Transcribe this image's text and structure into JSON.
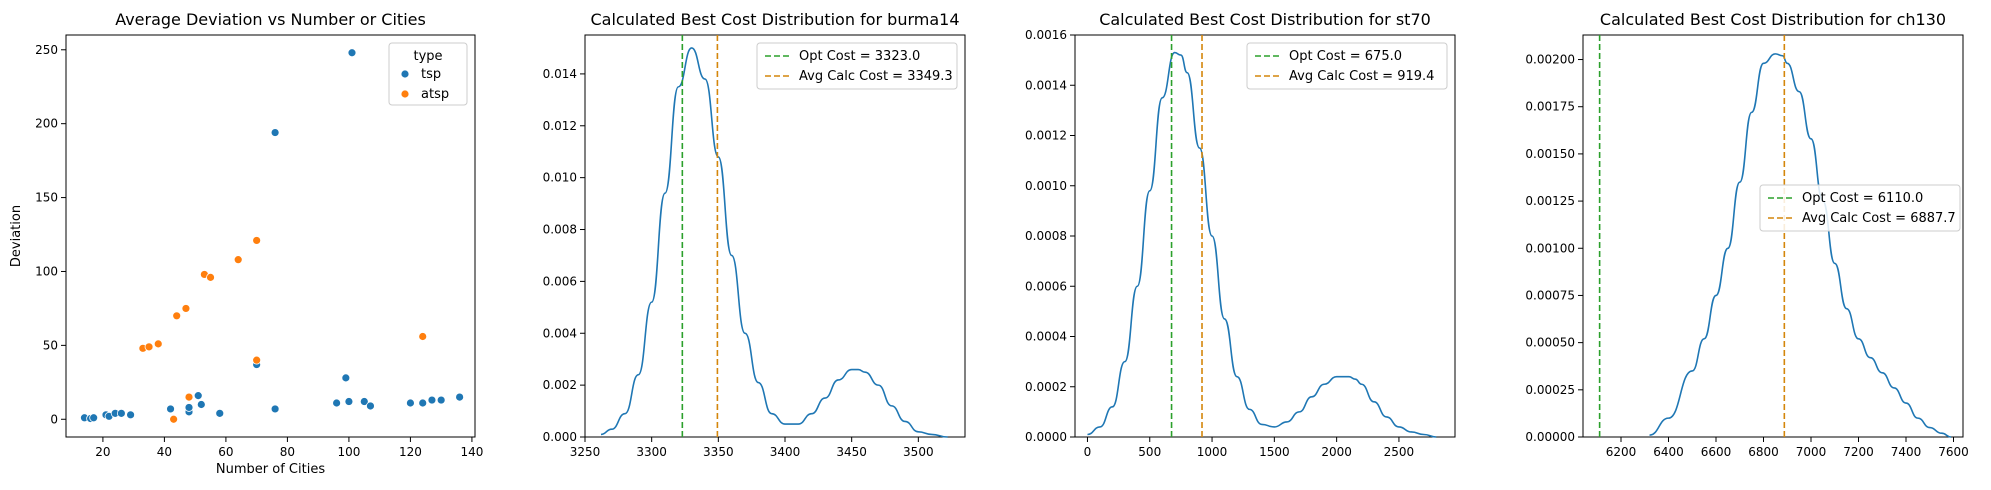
{
  "chart_data": [
    {
      "type": "scatter",
      "title": "Average Deviation vs Number or Cities",
      "xlabel": "Number of Cities",
      "ylabel": "Deviation",
      "xlim": [
        8,
        141
      ],
      "ylim": [
        -12,
        260
      ],
      "xticks": [
        20,
        40,
        60,
        80,
        100,
        120,
        140
      ],
      "yticks": [
        0,
        50,
        100,
        150,
        200,
        250
      ],
      "legend": {
        "title": "type",
        "position": "top-right"
      },
      "series": [
        {
          "name": "tsp",
          "color": "#1f77b4",
          "points": [
            [
              14,
              1
            ],
            [
              16,
              0.5
            ],
            [
              17,
              1
            ],
            [
              21,
              3
            ],
            [
              22,
              2
            ],
            [
              24,
              4
            ],
            [
              26,
              4
            ],
            [
              29,
              3
            ],
            [
              42,
              7
            ],
            [
              48,
              5
            ],
            [
              48,
              8
            ],
            [
              51,
              16
            ],
            [
              52,
              10
            ],
            [
              58,
              4
            ],
            [
              70,
              37
            ],
            [
              76,
              7
            ],
            [
              76,
              194
            ],
            [
              96,
              11
            ],
            [
              99,
              28
            ],
            [
              100,
              12
            ],
            [
              101,
              248
            ],
            [
              105,
              12
            ],
            [
              107,
              9
            ],
            [
              120,
              11
            ],
            [
              124,
              11
            ],
            [
              127,
              13
            ],
            [
              130,
              13
            ],
            [
              136,
              15
            ]
          ]
        },
        {
          "name": "atsp",
          "color": "#ff7f0e",
          "points": [
            [
              33,
              48
            ],
            [
              35,
              49
            ],
            [
              38,
              51
            ],
            [
              43,
              0
            ],
            [
              44,
              70
            ],
            [
              47,
              75
            ],
            [
              48,
              15
            ],
            [
              53,
              98
            ],
            [
              55,
              96
            ],
            [
              64,
              108
            ],
            [
              70,
              121
            ],
            [
              70,
              40
            ],
            [
              124,
              56
            ]
          ]
        }
      ]
    },
    {
      "type": "line",
      "title": "Calculated Best Cost Distribution for burma14",
      "xlim": [
        3250,
        3535
      ],
      "ylim": [
        0,
        0.0155
      ],
      "xticks": [
        3250,
        3300,
        3350,
        3400,
        3450,
        3500
      ],
      "yticks": [
        0.0,
        0.002,
        0.004,
        0.006,
        0.008,
        0.01,
        0.012,
        0.014
      ],
      "ytick_labels": [
        "0.000",
        "0.002",
        "0.004",
        "0.006",
        "0.008",
        "0.010",
        "0.012",
        "0.014"
      ],
      "legend": {
        "position": "top-right"
      },
      "density": {
        "color": "#1f77b4",
        "x": [
          3262,
          3270,
          3280,
          3290,
          3300,
          3310,
          3320,
          3330,
          3340,
          3350,
          3360,
          3370,
          3380,
          3390,
          3400,
          3410,
          3420,
          3430,
          3440,
          3450,
          3455,
          3460,
          3470,
          3480,
          3490,
          3500,
          3510,
          3522
        ],
        "y": [
          0.0001,
          0.0003,
          0.0009,
          0.0024,
          0.0052,
          0.0094,
          0.0135,
          0.015,
          0.0138,
          0.0108,
          0.007,
          0.004,
          0.0021,
          0.0009,
          0.0005,
          0.0005,
          0.0009,
          0.0015,
          0.0022,
          0.0026,
          0.0026,
          0.0025,
          0.002,
          0.0012,
          0.0006,
          0.0002,
          0.0001,
          0.0
        ]
      },
      "vlines": [
        {
          "label": "Opt Cost = 3323.0",
          "x": 3323.0,
          "color": "#2ca02c"
        },
        {
          "label": " Avg Calc Cost = 3349.3",
          "x": 3349.3,
          "color": "#d4860b"
        }
      ]
    },
    {
      "type": "line",
      "title": "Calculated Best Cost Distribution for st70",
      "xlim": [
        -100,
        2950
      ],
      "ylim": [
        0,
        0.0016
      ],
      "xticks": [
        0,
        500,
        1000,
        1500,
        2000,
        2500
      ],
      "yticks": [
        0.0,
        0.0002,
        0.0004,
        0.0006,
        0.0008,
        0.001,
        0.0012,
        0.0014,
        0.0016
      ],
      "ytick_labels": [
        "0.0000",
        "0.0002",
        "0.0004",
        "0.0006",
        "0.0008",
        "0.0010",
        "0.0012",
        "0.0014",
        "0.0016"
      ],
      "legend": {
        "position": "top-right"
      },
      "density": {
        "color": "#1f77b4",
        "x": [
          0,
          100,
          200,
          300,
          400,
          500,
          600,
          700,
          750,
          800,
          900,
          1000,
          1100,
          1200,
          1300,
          1400,
          1500,
          1600,
          1700,
          1800,
          1900,
          2000,
          2100,
          2150,
          2200,
          2300,
          2400,
          2500,
          2600,
          2700,
          2800
        ],
        "y": [
          1e-05,
          4e-05,
          0.00012,
          0.0003,
          0.0006,
          0.00098,
          0.00135,
          0.00153,
          0.00152,
          0.00145,
          0.00115,
          0.0008,
          0.00047,
          0.00024,
          0.00011,
          5e-05,
          4e-05,
          6e-05,
          0.0001,
          0.00016,
          0.00021,
          0.00024,
          0.00024,
          0.00023,
          0.00021,
          0.00014,
          8e-05,
          4e-05,
          2e-05,
          1e-05,
          0.0
        ]
      },
      "vlines": [
        {
          "label": "Opt Cost = 675.0",
          "x": 675.0,
          "color": "#2ca02c"
        },
        {
          "label": " Avg Calc Cost = 919.4",
          "x": 919.4,
          "color": "#d4860b"
        }
      ]
    },
    {
      "type": "line",
      "title": "Calculated Best Cost Distribution for ch130",
      "xlim": [
        6040,
        7640
      ],
      "ylim": [
        0,
        0.00213
      ],
      "xticks": [
        6200,
        6400,
        6600,
        6800,
        7000,
        7200,
        7400,
        7600
      ],
      "yticks": [
        0.0,
        0.00025,
        0.0005,
        0.00075,
        0.001,
        0.00125,
        0.0015,
        0.00175,
        0.002
      ],
      "ytick_labels": [
        "0.00000",
        "0.00025",
        "0.00050",
        "0.00075",
        "0.00100",
        "0.00125",
        "0.00150",
        "0.00175",
        "0.00200"
      ],
      "legend": {
        "position": "center-right"
      },
      "density": {
        "color": "#1f77b4",
        "x": [
          6320,
          6400,
          6500,
          6550,
          6600,
          6650,
          6700,
          6750,
          6800,
          6850,
          6880,
          6900,
          6950,
          7000,
          7050,
          7100,
          7150,
          7200,
          7250,
          7300,
          7350,
          7400,
          7450,
          7500,
          7550,
          7590
        ],
        "y": [
          1e-05,
          0.0001,
          0.00035,
          0.00052,
          0.00075,
          0.001,
          0.00135,
          0.00172,
          0.00198,
          0.00203,
          0.00202,
          0.00198,
          0.00183,
          0.00158,
          0.00125,
          0.00092,
          0.00068,
          0.00052,
          0.00042,
          0.00034,
          0.00026,
          0.00018,
          0.0001,
          5e-05,
          2e-05,
          0.0
        ]
      },
      "vlines": [
        {
          "label": "Opt Cost = 6110.0",
          "x": 6110.0,
          "color": "#2ca02c"
        },
        {
          "label": " Avg Calc Cost = 6887.7",
          "x": 6887.7,
          "color": "#d4860b"
        }
      ]
    }
  ]
}
